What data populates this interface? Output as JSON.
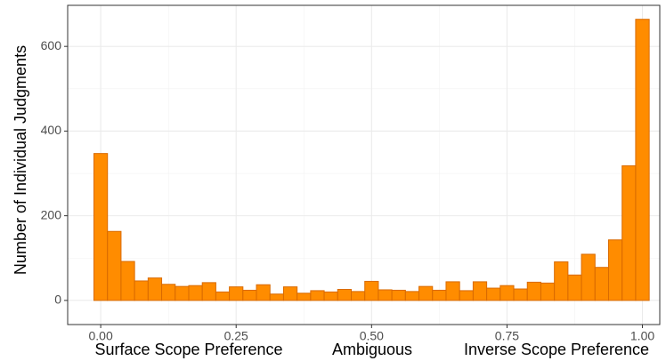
{
  "chart_data": {
    "type": "histogram",
    "ylabel": "Number of Individual Judgments",
    "x_axis_labels": [
      "Surface Scope Preference",
      "Ambiguous",
      "Inverse Scope Preference"
    ],
    "bins": [
      -0.0125,
      0.0125,
      0.0375,
      0.0625,
      0.0875,
      0.1125,
      0.1375,
      0.1625,
      0.1875,
      0.2125,
      0.2375,
      0.2625,
      0.2875,
      0.3125,
      0.3375,
      0.3625,
      0.3875,
      0.4125,
      0.4375,
      0.4625,
      0.4875,
      0.5125,
      0.5375,
      0.5625,
      0.5875,
      0.6125,
      0.6375,
      0.6625,
      0.6875,
      0.7125,
      0.7375,
      0.7625,
      0.7875,
      0.8125,
      0.8375,
      0.8625,
      0.8875,
      0.9125,
      0.9375,
      0.9625,
      0.9875,
      1.0125
    ],
    "values": [
      347,
      163,
      92,
      46,
      53,
      38,
      33,
      35,
      42,
      20,
      32,
      24,
      37,
      15,
      32,
      17,
      23,
      20,
      26,
      21,
      45,
      25,
      24,
      21,
      33,
      24,
      44,
      23,
      44,
      29,
      35,
      27,
      43,
      41,
      91,
      60,
      109,
      78,
      143,
      318,
      664
    ],
    "color": "#ff8c00",
    "edge_color": "#d96a00",
    "xlim": [
      -0.061,
      1.032
    ],
    "ylim": [
      -57,
      697
    ],
    "xticks": [
      {
        "value": 0,
        "label": "0.00"
      },
      {
        "value": 0.25,
        "label": "0.25"
      },
      {
        "value": 0.5,
        "label": "0.50"
      },
      {
        "value": 0.75,
        "label": "0.75"
      },
      {
        "value": 1,
        "label": "1.00"
      }
    ],
    "yticks": [
      0,
      200,
      400,
      600
    ],
    "x_minor_grid": [
      0.125,
      0.375,
      0.625,
      0.875
    ],
    "y_minor_grid": [
      100,
      300,
      500
    ],
    "grid": true
  }
}
